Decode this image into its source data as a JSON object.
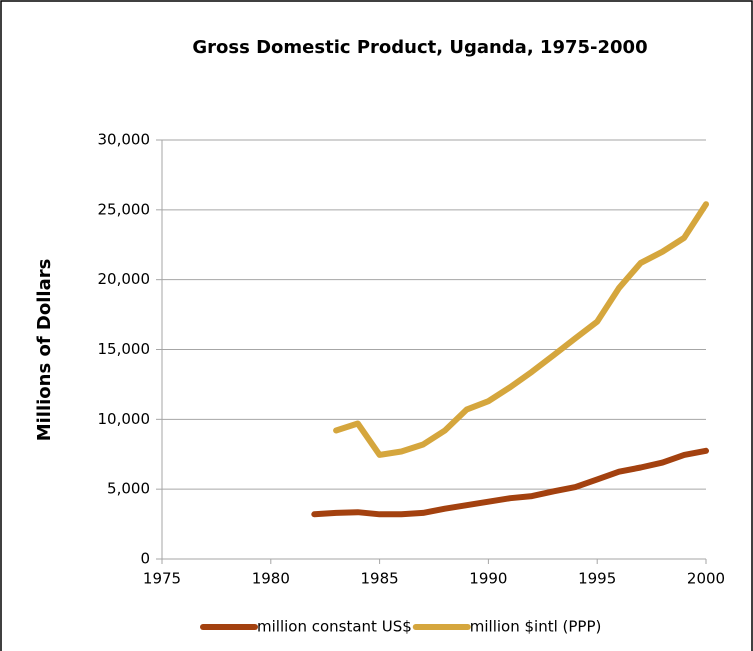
{
  "chart_data": {
    "type": "line",
    "title": "Gross Domestic Product, Uganda, 1975-2000",
    "y_label": "Millions of Dollars",
    "x": [
      1982,
      1983,
      1984,
      1985,
      1986,
      1987,
      1988,
      1989,
      1990,
      1991,
      1992,
      1993,
      1994,
      1995,
      1996,
      1997,
      1998,
      1999,
      2000
    ],
    "series": [
      {
        "name": "million constant US$",
        "color": "#a3410f",
        "values": [
          3200,
          3300,
          3350,
          3200,
          3200,
          3300,
          3600,
          3850,
          4100,
          4350,
          4500,
          4850,
          5150,
          5700,
          6250,
          6550,
          6900,
          7450,
          7750
        ]
      },
      {
        "name": "million $intl (PPP)",
        "color": "#d5a63d",
        "values": [
          null,
          9200,
          9700,
          7450,
          7700,
          8200,
          9200,
          10700,
          11300,
          12300,
          13400,
          14600,
          15800,
          17000,
          19400,
          21200,
          22000,
          23000,
          25400
        ]
      }
    ],
    "xlim": [
      1975,
      2000
    ],
    "xticks": [
      1975,
      1980,
      1985,
      1990,
      1995,
      2000
    ],
    "ylim": [
      0,
      30000
    ],
    "yticks": [
      0,
      {
        "value": 5000,
        "label": "5,000"
      },
      {
        "value": 10000,
        "label": "10,000"
      },
      {
        "value": 15000,
        "label": "15,000"
      },
      {
        "value": 20000,
        "label": "20,000"
      },
      {
        "value": 25000,
        "label": "25,000"
      },
      {
        "value": 30000,
        "label": "30,000"
      }
    ],
    "grid": true,
    "legend": "bottom"
  }
}
